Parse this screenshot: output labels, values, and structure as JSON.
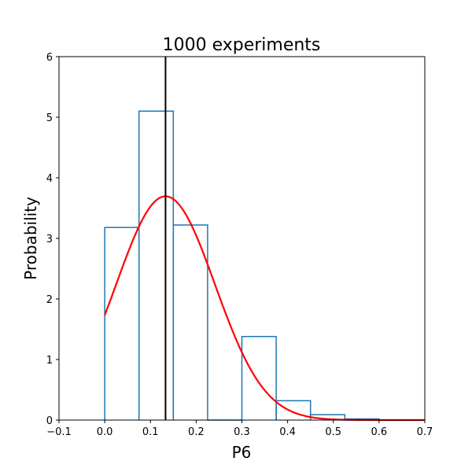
{
  "chart_data": {
    "type": "histogram",
    "title": "1000 experiments",
    "xlabel": "P6",
    "ylabel": "Probability",
    "xlim": [
      -0.1,
      0.7
    ],
    "ylim": [
      0,
      6
    ],
    "xticks": [
      "−0.1",
      "0.0",
      "0.1",
      "0.2",
      "0.3",
      "0.4",
      "0.5",
      "0.6",
      "0.7"
    ],
    "xtick_values": [
      -0.1,
      0.0,
      0.1,
      0.2,
      0.3,
      0.4,
      0.5,
      0.6,
      0.7
    ],
    "yticks": [
      "0",
      "1",
      "2",
      "3",
      "4",
      "5",
      "6"
    ],
    "ytick_values": [
      0,
      1,
      2,
      3,
      4,
      5,
      6
    ],
    "grid": false,
    "histogram": {
      "bin_edges": [
        0.0,
        0.075,
        0.15,
        0.225,
        0.3,
        0.375,
        0.45,
        0.525,
        0.6
      ],
      "values": [
        3.18,
        5.1,
        3.22,
        0.0,
        1.38,
        0.32,
        0.09,
        0.02
      ],
      "color": "#1f77b4"
    },
    "fit_curve": {
      "type": "normal",
      "mean": 0.133,
      "std": 0.108,
      "color": "#ff0000"
    },
    "vertical_line": {
      "x": 0.133,
      "color": "#000000"
    }
  }
}
